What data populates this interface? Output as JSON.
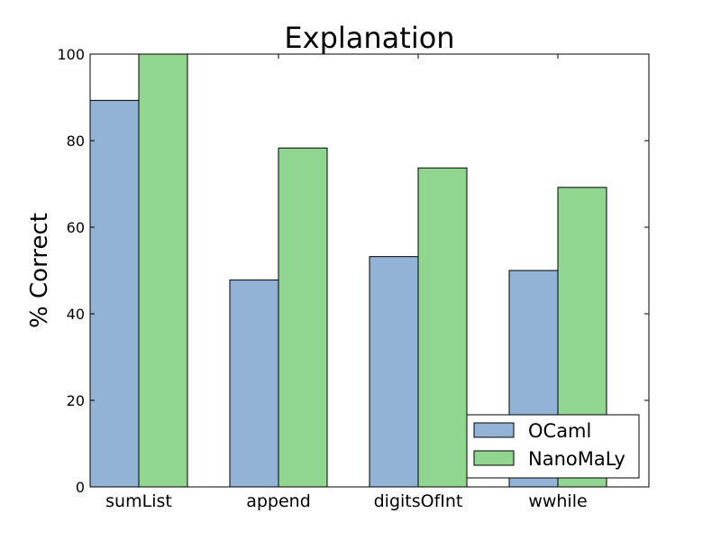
{
  "chart_data": {
    "type": "bar",
    "title": "Explanation",
    "xlabel": "",
    "ylabel": "% Correct",
    "ylim": [
      0,
      100
    ],
    "yticks": [
      "0",
      "20",
      "40",
      "60",
      "80",
      "100"
    ],
    "categories": [
      "sumList",
      "append",
      "digitsOfInt",
      "wwhile"
    ],
    "series": [
      {
        "name": "OCaml",
        "values": [
          89.3,
          47.8,
          53.2,
          50.0
        ],
        "color": "#92b2d6"
      },
      {
        "name": "NanoMaLy",
        "values": [
          100,
          78.3,
          73.7,
          69.2
        ],
        "color": "#90d590"
      }
    ],
    "legend_position": "lower-right",
    "grid": false
  }
}
